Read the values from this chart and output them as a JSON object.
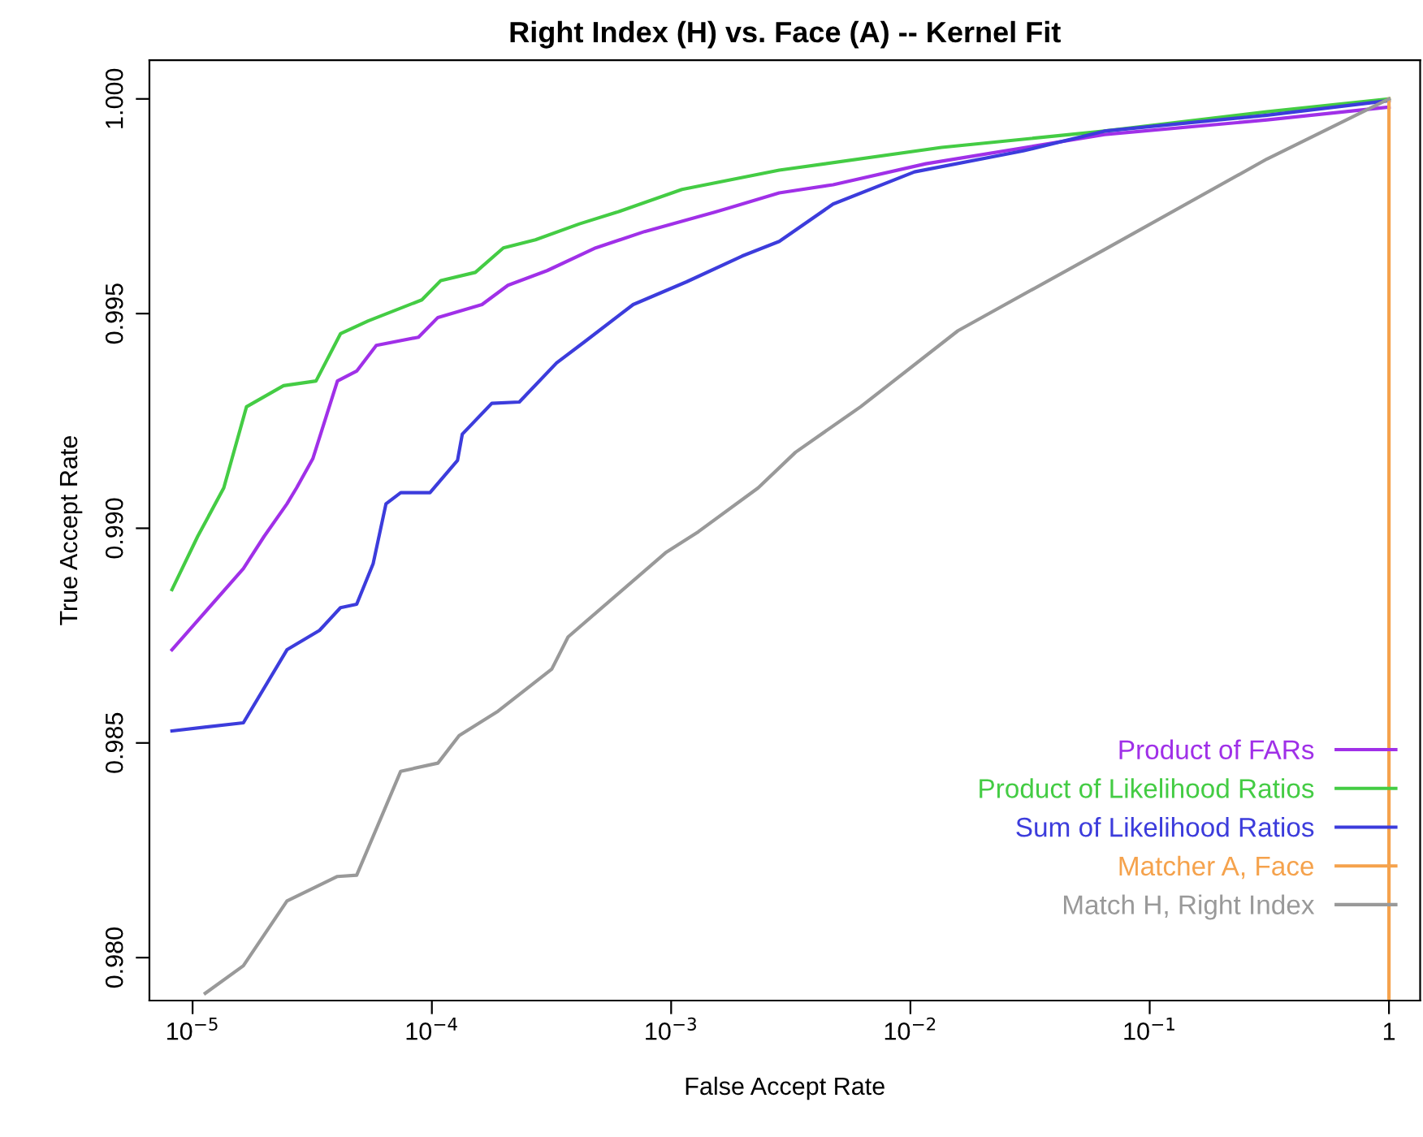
{
  "chart_data": {
    "type": "line",
    "title": "Right Index (H) vs. Face (A) -- Kernel Fit",
    "xlabel": "False Accept Rate",
    "ylabel": "True Accept Rate",
    "log": "x",
    "grid": false,
    "legend": "bottom right",
    "marker": "none",
    "line_style": "solid",
    "xlim": [
      6.6e-06,
      1.35
    ],
    "ylim": [
      0.979,
      1.0009
    ],
    "xticks": [
      {
        "value": 1e-05,
        "label": "10$^{−5}$"
      },
      {
        "value": 0.0001,
        "label": "10$^{−4}$"
      },
      {
        "value": 0.001,
        "label": "10$^{−3}$"
      },
      {
        "value": 0.01,
        "label": "10$^{−2}$"
      },
      {
        "value": 0.1,
        "label": "10$^{−1}$"
      },
      1
    ],
    "yticks": [
      {
        "value": 0.98,
        "label": "0.980"
      },
      {
        "value": 0.985,
        "label": "0.985"
      },
      {
        "value": 0.99,
        "label": "0.990"
      },
      {
        "value": 0.995,
        "label": "0.995"
      },
      {
        "value": 1.0,
        "label": "1.000"
      }
    ],
    "series": [
      {
        "name": "Product of FARs",
        "color": "#a030e8",
        "x": [
          8.2e-06,
          1.63e-05,
          1.99e-05,
          2.48e-05,
          2.72e-05,
          3.18e-05,
          4.03e-05,
          4.85e-05,
          5.86e-05,
          8.79e-05,
          0.000106,
          0.000162,
          0.000208,
          0.000303,
          0.000484,
          0.000774,
          0.00152,
          0.00283,
          0.00475,
          0.0116,
          0.0647,
          0.309,
          1
        ],
        "values": [
          0.98717,
          0.98906,
          0.98981,
          0.99057,
          0.99094,
          0.99162,
          0.99343,
          0.99366,
          0.99426,
          0.99445,
          0.99491,
          0.99521,
          0.99566,
          0.996,
          0.99653,
          0.99691,
          0.99736,
          0.99781,
          0.998,
          0.99849,
          0.99917,
          0.99951,
          0.99981
        ]
      },
      {
        "name": "Product of Likelihood Ratios",
        "color": "#44cc44",
        "x": [
          8.2e-06,
          1.05e-05,
          1.35e-05,
          1.68e-05,
          2.4e-05,
          3.28e-05,
          4.15e-05,
          5.42e-05,
          9.08e-05,
          0.000109,
          0.000152,
          0.000199,
          0.000271,
          0.000414,
          0.000593,
          0.00111,
          0.00283,
          0.0135,
          0.0647,
          0.309,
          1
        ],
        "values": [
          0.98857,
          0.98981,
          0.99094,
          0.99283,
          0.99332,
          0.99343,
          0.99453,
          0.99483,
          0.99532,
          0.99577,
          0.99596,
          0.99653,
          0.99672,
          0.99709,
          0.99736,
          0.99789,
          0.99834,
          0.99887,
          0.99925,
          0.9997,
          1.0
        ]
      },
      {
        "name": "Sum of Likelihood Ratios",
        "color": "#3c3cdc",
        "x": [
          8.2e-06,
          1.63e-05,
          2.48e-05,
          3.39e-05,
          4.15e-05,
          4.85e-05,
          5.68e-05,
          6.43e-05,
          7.41e-05,
          9.82e-05,
          0.000128,
          0.000134,
          0.000178,
          0.000232,
          0.000332,
          0.000434,
          0.000694,
          0.00116,
          0.00198,
          0.00283,
          0.00475,
          0.0104,
          0.0296,
          0.0647,
          0.309,
          1
        ],
        "values": [
          0.98528,
          0.98547,
          0.98717,
          0.98762,
          0.98815,
          0.98823,
          0.98917,
          0.99057,
          0.99083,
          0.99083,
          0.99158,
          0.99219,
          0.99291,
          0.99294,
          0.99385,
          0.99434,
          0.99521,
          0.99574,
          0.99634,
          0.99668,
          0.99755,
          0.9983,
          0.99879,
          0.99925,
          0.99962,
          0.99996
        ]
      },
      {
        "name": "Matcher A, Face",
        "color": "#f5a24c",
        "x": [
          1,
          1
        ],
        "values": [
          0.979,
          1.0
        ]
      },
      {
        "name": "Match H, Right Index",
        "color": "#999999",
        "x": [
          1.13e-05,
          1.63e-05,
          2.48e-05,
          4.03e-05,
          4.85e-05,
          7.41e-05,
          0.000106,
          0.00013,
          0.000189,
          0.000317,
          0.000371,
          0.000948,
          0.0013,
          0.00231,
          0.00331,
          0.00619,
          0.0158,
          0.0647,
          0.309,
          1
        ],
        "values": [
          0.97917,
          0.97981,
          0.98132,
          0.98189,
          0.98192,
          0.98434,
          0.98453,
          0.98517,
          0.98574,
          0.98672,
          0.98747,
          0.98943,
          0.98992,
          0.99094,
          0.99177,
          0.99283,
          0.9946,
          0.99649,
          0.9986,
          1.0
        ]
      }
    ]
  }
}
